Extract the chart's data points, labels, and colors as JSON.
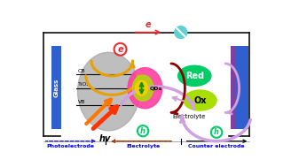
{
  "fig_width": 3.28,
  "fig_height": 1.89,
  "dpi": 100,
  "bg_color": "#ffffff",
  "glass_color": "#3060d0",
  "counter_blue": "#3060d0",
  "counter_purple": "#8040a0",
  "tio2_color": "#a8a8a8",
  "cb_label": "CB",
  "vb_label": "VB",
  "tio2_label": "TiO₂",
  "qd_label": "QDs",
  "glass_label": "Glass",
  "hv_label": "hv",
  "electrolyte_label": "Electrolyte",
  "red_label": "Red",
  "ox_label": "Ox",
  "e_label": "e",
  "h_label": "h",
  "footer_texts": [
    "Photoelectrode",
    "Electrolyte",
    "Counter electrode"
  ],
  "circuit_line_color": "#111111",
  "arrow_color_e": "#e83030",
  "arrow_color_gold": "#e8a000",
  "arrow_color_purple": "#b070d0",
  "arrow_color_dark_red": "#8b0000",
  "arrow_color_light_purple": "#d0a0e0",
  "red_ellipse_color": "#00cc66",
  "ox_ellipse_color": "#aadd00",
  "qd_outer_color": "#ff40a0",
  "qd_inner_color": "#ffcc00",
  "energy_arrow_color": "#009900",
  "resistor_color": "#60d0d0"
}
